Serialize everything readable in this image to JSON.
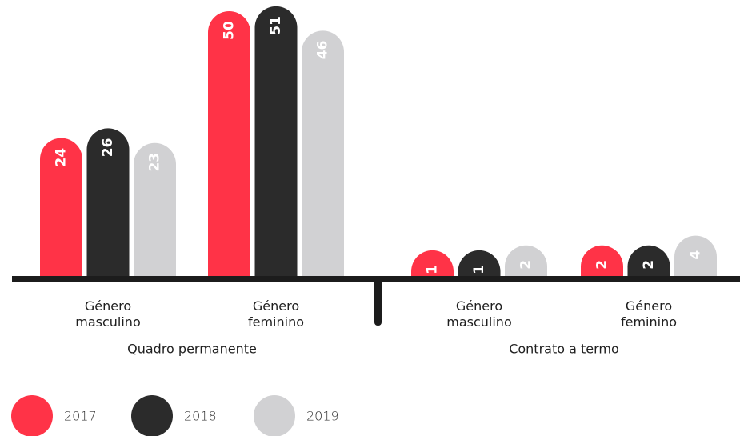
{
  "chart_data": {
    "type": "bar",
    "categories": [
      "Género masculino",
      "Género feminino",
      "Género masculino",
      "Género feminino"
    ],
    "groups": [
      "Quadro permanente",
      "Contrato a termo"
    ],
    "series": [
      {
        "name": "2017",
        "color": "#ff3347",
        "values": [
          24,
          50,
          1,
          2
        ]
      },
      {
        "name": "2018",
        "color": "#2b2b2b",
        "values": [
          26,
          51,
          1,
          2
        ]
      },
      {
        "name": "2019",
        "color": "#d1d1d3",
        "values": [
          23,
          46,
          2,
          4
        ]
      }
    ]
  }
}
